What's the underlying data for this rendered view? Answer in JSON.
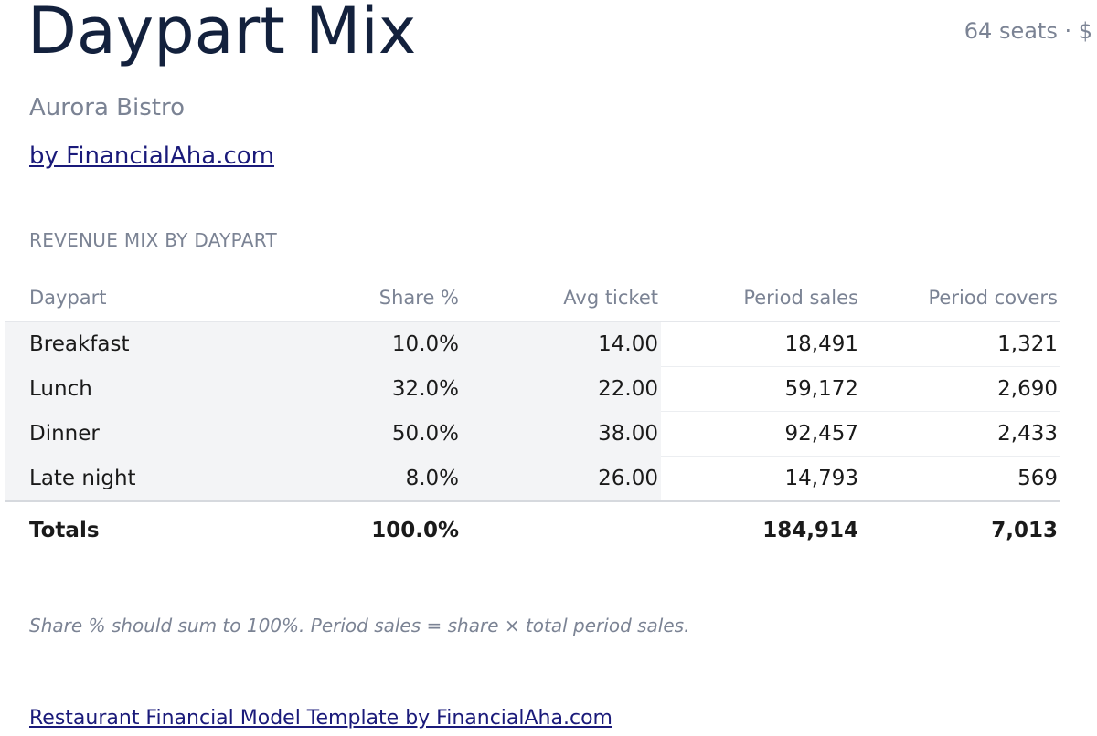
{
  "header": {
    "title": "Daypart Mix",
    "meta": "64 seats · $",
    "subtitle": "Aurora Bistro",
    "byline": "by FinancialAha.com"
  },
  "section": {
    "label": "REVENUE MIX BY DAYPART"
  },
  "table": {
    "columns": [
      "Daypart",
      "Share %",
      "Avg ticket",
      "Period sales",
      "Period covers"
    ],
    "rows": [
      [
        "Breakfast",
        "10.0%",
        "14.00",
        "18,491",
        "1,321"
      ],
      [
        "Lunch",
        "32.0%",
        "22.00",
        "59,172",
        "2,690"
      ],
      [
        "Dinner",
        "50.0%",
        "38.00",
        "92,457",
        "2,433"
      ],
      [
        "Late night",
        "8.0%",
        "26.00",
        "14,793",
        "569"
      ]
    ],
    "totals": {
      "label": "Totals",
      "share": "100.0%",
      "sales": "184,914",
      "covers": "7,013"
    }
  },
  "note": "Share % should sum to 100%. Period sales = share × total period sales.",
  "footer": {
    "link": "Restaurant Financial Model Template by FinancialAha.com"
  }
}
